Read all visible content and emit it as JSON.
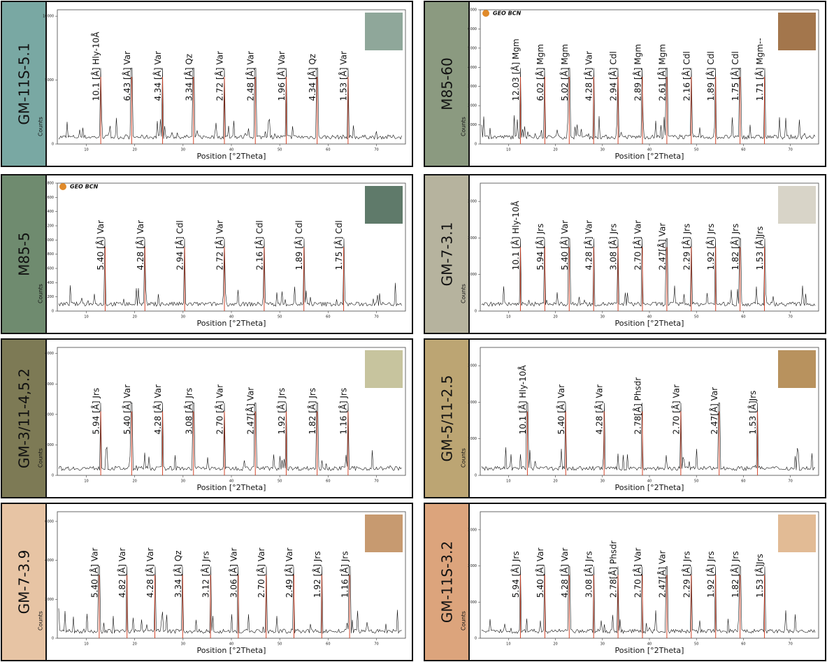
{
  "panels": [
    {
      "sample": "GM-11S-5.1",
      "color": "#79a8a3",
      "ylabel": "Counts",
      "xlabel": "Position [°2Theta]",
      "xlim": [
        4,
        76
      ],
      "xticks": [
        10,
        20,
        30,
        40,
        50,
        60,
        70
      ],
      "ylim": [
        0,
        10500
      ],
      "yticks": [
        0,
        5000,
        10000
      ],
      "peaks": [
        "10.1 [Å] Hly-10Å",
        "6.43 [Å] Var",
        "4.34 [Å] Var",
        "3.34 [Å] Qz",
        "2.72 [Å] Var",
        "2.48 [Å] Var",
        "1.96 [Å] Var",
        "4.34 [Å] Qz",
        "1.53 [Å] Var"
      ]
    },
    {
      "sample": "M85-60",
      "color": "#8b9a80",
      "logo": "GEO BCN",
      "ylabel": "Counts",
      "xlabel": "Position [°2Theta]",
      "xlim": [
        4,
        76
      ],
      "xticks": [
        10,
        20,
        30,
        40,
        50,
        60,
        70
      ],
      "ylim": [
        0,
        7000
      ],
      "yticks": [
        0,
        1000,
        2000,
        3000,
        4000,
        5000,
        6000,
        7000
      ],
      "peaks": [
        "12.03 [Å] Mgm",
        "6.02 [Å] Mgm",
        "5.02 [Å] Mgm",
        "4.28 [Å] Var",
        "2.94 [Å] Cdl",
        "2.89 [Å] Mgm",
        "2.61 [Å] Mgm",
        "2.16 [Å] Cdl",
        "1.89 [Å] Cdl",
        "1.75 [Å] Cdl",
        "1.71 [Å] Mgm--"
      ]
    },
    {
      "sample": "M85-5",
      "color": "#6f8b6f",
      "logo": "GEO BCN",
      "ylabel": "Counts",
      "xlabel": "Position [°2Theta]",
      "xlim": [
        4,
        76
      ],
      "xticks": [
        10,
        20,
        30,
        40,
        50,
        60,
        70
      ],
      "ylim": [
        0,
        1800
      ],
      "yticks": [
        0,
        200,
        400,
        600,
        800,
        1000,
        1200,
        1400,
        1600,
        1800
      ],
      "peaks": [
        "5.40 [Å] Var",
        "4.28 [Å] Var",
        "2.94 [Å] Cdl",
        "2.72 [Å] Var",
        "2.16 [Å] Cdl",
        "1.89 [Å] Cdl",
        "1.75 [Å] Cdl"
      ]
    },
    {
      "sample": "GM-7-3.1",
      "color": "#b6b39e",
      "ylabel": "Counts",
      "xlabel": "Position [°2Theta]",
      "xlim": [
        4,
        76
      ],
      "xticks": [
        10,
        20,
        30,
        40,
        50,
        60,
        70
      ],
      "ylim": [
        0,
        3500
      ],
      "yticks": [
        0,
        1000,
        2000,
        3000
      ],
      "peaks": [
        "10.1 [Å] Hly-10Å",
        "5.94 [Å] Jrs",
        "5.40 [Å] Var",
        "4.28 [Å] Var",
        "3.08 [Å] Jrs",
        "2.70 [Å] Var",
        "2.47[Å] Var",
        "2.29 [Å] Jrs",
        "1.92 [Å] Jrs",
        "1.82 [Å] Jrs",
        "1.53 [Å]Jrs"
      ]
    },
    {
      "sample": "GM-3/11-4,5.2",
      "color": "#7d7a55",
      "ylabel": "Counts",
      "xlabel": "Position [°2Theta]",
      "xlim": [
        4,
        76
      ],
      "xticks": [
        10,
        20,
        30,
        40,
        50,
        60,
        70
      ],
      "ylim": [
        0,
        4200
      ],
      "yticks": [
        0,
        1000,
        2000,
        3000,
        4000
      ],
      "peaks": [
        "5.94 [Å] Jrs",
        "5.40 [Å] Var",
        "4.28 [Å] Var",
        "3.08 [Å] Jrs",
        "2.70 [Å] Var",
        "2.47[Å] Var",
        "1.92 [Å] Jrs",
        "1.82 [Å] Jrs",
        "1.16 [Å] Jrs"
      ]
    },
    {
      "sample": "GM-5/11-2.5",
      "color": "#bca573",
      "ylabel": "Counts",
      "xlabel": "Position [°2Theta]",
      "xlim": [
        4,
        76
      ],
      "xticks": [
        10,
        20,
        30,
        40,
        50,
        60,
        70
      ],
      "ylim": [
        0,
        3500
      ],
      "yticks": [
        0,
        1000,
        2000,
        3000
      ],
      "peaks": [
        "10.1 [Å] Hly-10Å",
        "5.40 [Å] Var",
        "4.28 [Å] Var",
        "2.78[Å] Phsdr",
        "2.70 [Å] Var",
        "2.47[Å] Var",
        "1.53 [Å]Jrs"
      ]
    },
    {
      "sample": "GM-7-3.9",
      "color": "#e7c4a4",
      "ylabel": "Counts",
      "xlabel": "Position [°2Theta]",
      "xlim": [
        4,
        76
      ],
      "xticks": [
        10,
        20,
        30,
        40,
        50,
        60,
        70
      ],
      "ylim": [
        0,
        6500
      ],
      "yticks": [
        0,
        2000,
        4000,
        6000
      ],
      "peaks": [
        "5.40 [Å] Var",
        "4.82 [Å] Var",
        "4.28 [Å] Var",
        "3.34 [Å] Qz",
        "3.12 [Å] Jrs",
        "3.06 [Å] Var",
        "2.70 [Å] Var",
        "2.49 [Å] Var",
        "1.92 [Å] Jrs",
        "1.16 [Å] Jrs"
      ]
    },
    {
      "sample": "GM-11S-3.2",
      "color": "#dca47c",
      "ylabel": "Counts",
      "xlabel": "Position [°2Theta]",
      "xlim": [
        4,
        76
      ],
      "xticks": [
        10,
        20,
        30,
        40,
        50,
        60,
        70
      ],
      "ylim": [
        0,
        3500
      ],
      "yticks": [
        0,
        1000,
        2000,
        3000
      ],
      "peaks": [
        "5.94 [Å] Jrs",
        "5.40 [Å] Var",
        "4.28 [Å] Var",
        "3.08 [Å] Jrs",
        "2.78[Å] Phsdr",
        "2.70 [Å] Var",
        "2.47[Å] Var",
        "2.29 [Å] Jrs",
        "1.92 [Å] Jrs",
        "1.82 [Å] Jrs",
        "1.53 [Å]Jrs"
      ]
    }
  ]
}
